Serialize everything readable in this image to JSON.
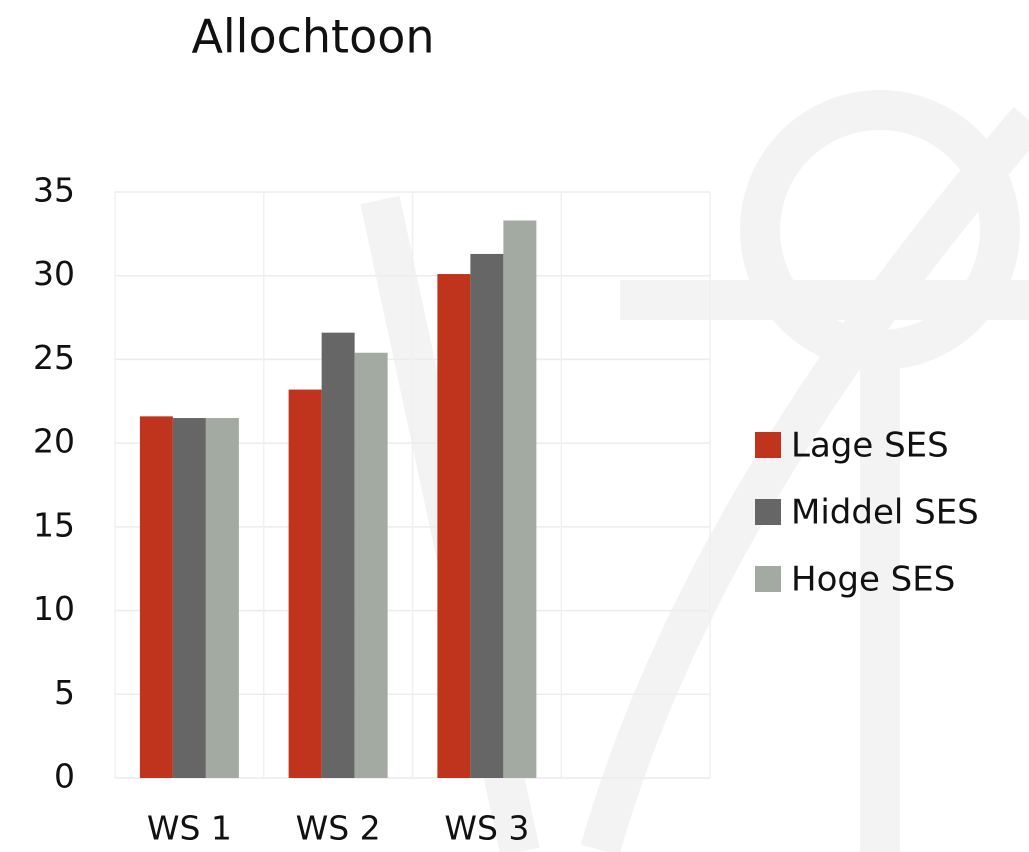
{
  "chart_data": {
    "type": "bar",
    "title": "Allochtoon",
    "categories": [
      "WS 1",
      "WS 2",
      "WS 3",
      null
    ],
    "series": [
      {
        "name": "Lage SES",
        "color": "#c0341d",
        "values": [
          21.6,
          23.2,
          30.1,
          null
        ]
      },
      {
        "name": "Middel SES",
        "color": "#666666",
        "values": [
          21.5,
          26.6,
          31.3,
          null
        ]
      },
      {
        "name": "Hoge SES",
        "color": "#a3aaa1",
        "values": [
          21.5,
          25.4,
          33.3,
          null
        ]
      }
    ],
    "ylim": [
      0,
      35
    ],
    "yticks": [
      0,
      5,
      10,
      15,
      20,
      25,
      30,
      35
    ],
    "grid": true,
    "legend": "right"
  }
}
